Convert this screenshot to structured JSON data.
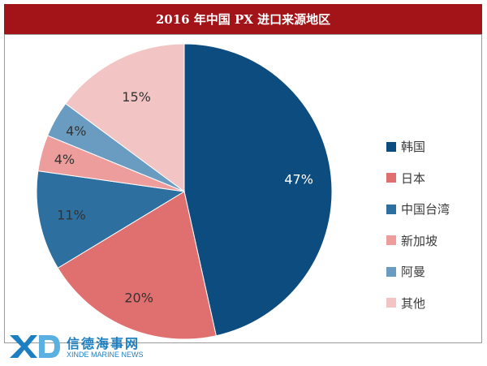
{
  "title": "2016 年中国 PX 进口来源地区",
  "chart_data": {
    "type": "pie",
    "categories": [
      "韩国",
      "日本",
      "中国台湾",
      "新加坡",
      "阿曼",
      "其他"
    ],
    "values": [
      47,
      20,
      11,
      4,
      4,
      15
    ],
    "labels": [
      "47%",
      "20%",
      "11%",
      "4%",
      "4%",
      "15%"
    ],
    "colors": [
      "#0d4c7e",
      "#e0706f",
      "#2d6f9f",
      "#ee9d9d",
      "#6a9cc1",
      "#f2c4c4"
    ],
    "legend_position": "right",
    "start": "12 o'clock, clockwise"
  },
  "watermark": {
    "cn": "信德海事网",
    "en": "XINDE MARINE NEWS"
  }
}
